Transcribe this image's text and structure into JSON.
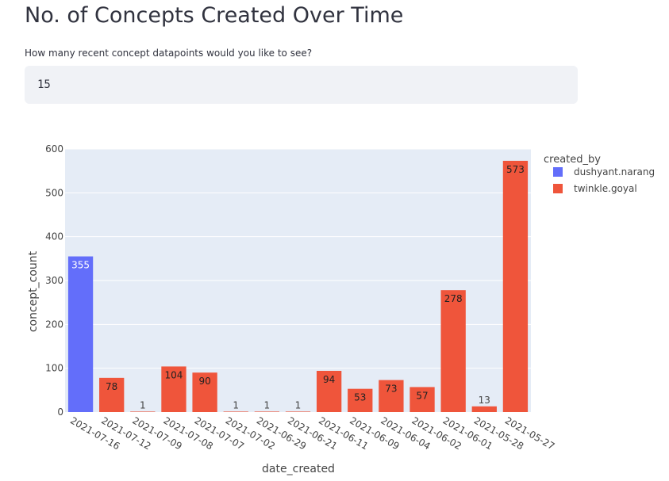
{
  "page": {
    "title": "No. of Concepts Created Over Time",
    "input_label": "How many recent concept datapoints would you like to see?",
    "input_value": "15"
  },
  "chart_data": {
    "type": "bar",
    "title": "",
    "xlabel": "date_created",
    "ylabel": "concept_count",
    "ylim": [
      0,
      600
    ],
    "yticks": [
      0,
      100,
      200,
      300,
      400,
      500,
      600
    ],
    "grid": true,
    "legend_title": "created_by",
    "legend_position": "right",
    "categories": [
      "2021-07-16",
      "2021-07-12",
      "2021-07-09",
      "2021-07-08",
      "2021-07-07",
      "2021-07-02",
      "2021-06-29",
      "2021-06-21",
      "2021-06-11",
      "2021-06-09",
      "2021-06-04",
      "2021-06-02",
      "2021-06-01",
      "2021-05-28",
      "2021-05-27"
    ],
    "series": [
      {
        "name": "dushyant.narang",
        "color": "#636efa",
        "values": [
          355,
          null,
          null,
          null,
          null,
          null,
          null,
          null,
          null,
          null,
          null,
          null,
          null,
          null,
          null
        ]
      },
      {
        "name": "twinkle.goyal",
        "color": "#ef553b",
        "values": [
          null,
          78,
          1,
          104,
          90,
          1,
          1,
          1,
          94,
          53,
          73,
          57,
          278,
          13,
          573
        ]
      }
    ]
  }
}
